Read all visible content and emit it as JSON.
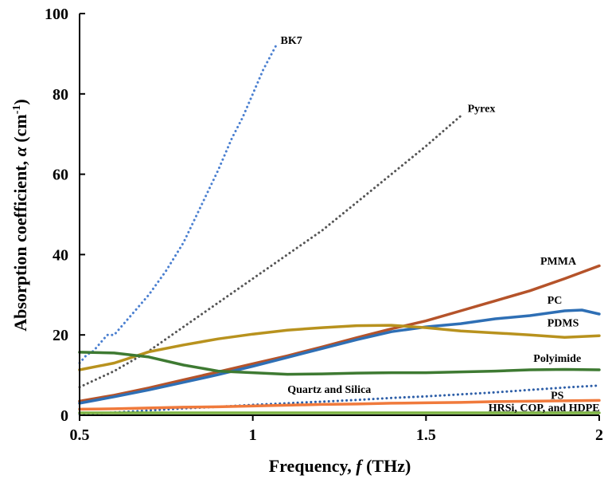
{
  "chart_data": {
    "type": "line",
    "xlabel": {
      "prefix": "Frequency, ",
      "symbol": "f",
      "suffix": " (THz)"
    },
    "ylabel": {
      "prefix": "Absorption coefficient, ",
      "symbol": "α",
      "suffix": " (cm",
      "sup": "-1",
      "close": ")"
    },
    "xlim": [
      0.5,
      2
    ],
    "ylim": [
      0,
      100
    ],
    "xticks": [
      "0.5",
      "1",
      "1.5",
      "2"
    ],
    "yticks": [
      "0",
      "20",
      "40",
      "60",
      "80",
      "100"
    ],
    "xtick_values": [
      0.5,
      1,
      1.5,
      2
    ],
    "ytick_values": [
      0,
      20,
      40,
      60,
      80,
      100
    ],
    "grid": false,
    "series": [
      {
        "name": "BK7",
        "color": "#4a7fd0",
        "style": "dotted",
        "label_at": [
          1.08,
          92.5
        ],
        "points": [
          [
            0.5,
            13
          ],
          [
            0.52,
            15
          ],
          [
            0.54,
            16
          ],
          [
            0.56,
            18
          ],
          [
            0.58,
            20
          ],
          [
            0.6,
            20
          ],
          [
            0.62,
            22
          ],
          [
            0.65,
            25
          ],
          [
            0.7,
            30
          ],
          [
            0.75,
            36
          ],
          [
            0.8,
            43
          ],
          [
            0.85,
            52
          ],
          [
            0.9,
            61
          ],
          [
            0.94,
            69
          ],
          [
            0.97,
            74
          ],
          [
            1.0,
            80
          ],
          [
            1.03,
            86
          ],
          [
            1.07,
            92.5
          ]
        ]
      },
      {
        "name": "Pyrex",
        "color": "#555555",
        "style": "dotted",
        "label_at": [
          1.62,
          75.5
        ],
        "points": [
          [
            0.5,
            7
          ],
          [
            0.6,
            11
          ],
          [
            0.7,
            16
          ],
          [
            0.8,
            22
          ],
          [
            0.9,
            28
          ],
          [
            1.0,
            34
          ],
          [
            1.1,
            40
          ],
          [
            1.2,
            46
          ],
          [
            1.3,
            53
          ],
          [
            1.4,
            60
          ],
          [
            1.5,
            67
          ],
          [
            1.6,
            74.5
          ]
        ]
      },
      {
        "name": "PMMA",
        "color": "#b5532a",
        "style": "solid",
        "label_at": [
          1.83,
          37.5
        ],
        "points": [
          [
            0.5,
            3.5
          ],
          [
            0.6,
            5
          ],
          [
            0.7,
            6.8
          ],
          [
            0.8,
            8.8
          ],
          [
            0.9,
            10.8
          ],
          [
            1.0,
            12.8
          ],
          [
            1.1,
            14.8
          ],
          [
            1.2,
            17
          ],
          [
            1.3,
            19.3
          ],
          [
            1.4,
            21.5
          ],
          [
            1.5,
            23.5
          ],
          [
            1.6,
            26
          ],
          [
            1.7,
            28.5
          ],
          [
            1.8,
            31
          ],
          [
            1.9,
            34
          ],
          [
            2.0,
            37.2
          ]
        ]
      },
      {
        "name": "PC",
        "color": "#2e6fb5",
        "style": "solid",
        "label_at": [
          1.85,
          27.8
        ],
        "points": [
          [
            0.5,
            3
          ],
          [
            0.6,
            4.6
          ],
          [
            0.7,
            6.3
          ],
          [
            0.8,
            8.2
          ],
          [
            0.9,
            10.1
          ],
          [
            1.0,
            12.2
          ],
          [
            1.1,
            14.4
          ],
          [
            1.2,
            16.6
          ],
          [
            1.3,
            18.8
          ],
          [
            1.4,
            20.8
          ],
          [
            1.5,
            22
          ],
          [
            1.6,
            22.8
          ],
          [
            1.7,
            24
          ],
          [
            1.8,
            24.8
          ],
          [
            1.9,
            26
          ],
          [
            1.95,
            26.2
          ],
          [
            2.0,
            25.2
          ]
        ]
      },
      {
        "name": "PDMS",
        "color": "#b8921e",
        "style": "solid",
        "label_at": [
          1.85,
          22.1
        ],
        "points": [
          [
            0.5,
            11.3
          ],
          [
            0.6,
            13
          ],
          [
            0.7,
            15.8
          ],
          [
            0.8,
            17.5
          ],
          [
            0.9,
            19
          ],
          [
            1.0,
            20.2
          ],
          [
            1.1,
            21.2
          ],
          [
            1.2,
            21.8
          ],
          [
            1.3,
            22.3
          ],
          [
            1.4,
            22.4
          ],
          [
            1.5,
            21.8
          ],
          [
            1.6,
            21
          ],
          [
            1.7,
            20.5
          ],
          [
            1.8,
            20
          ],
          [
            1.9,
            19.4
          ],
          [
            2.0,
            19.8
          ]
        ]
      },
      {
        "name": "Polyimide",
        "color": "#3e7a32",
        "style": "solid",
        "label_at": [
          1.81,
          13.3
        ],
        "points": [
          [
            0.5,
            15.7
          ],
          [
            0.6,
            15.5
          ],
          [
            0.7,
            14.5
          ],
          [
            0.8,
            12.5
          ],
          [
            0.9,
            11
          ],
          [
            1.0,
            10.6
          ],
          [
            1.1,
            10.2
          ],
          [
            1.2,
            10.3
          ],
          [
            1.3,
            10.5
          ],
          [
            1.4,
            10.6
          ],
          [
            1.5,
            10.6
          ],
          [
            1.6,
            10.8
          ],
          [
            1.7,
            11
          ],
          [
            1.8,
            11.3
          ],
          [
            1.9,
            11.4
          ],
          [
            2.0,
            11.3
          ]
        ]
      },
      {
        "name": "Quartz and Silica",
        "color": "#2e5fa8",
        "style": "dotted",
        "label_at": [
          1.1,
          5.6
        ],
        "points": [
          [
            0.5,
            0.3
          ],
          [
            0.6,
            0.7
          ],
          [
            0.7,
            1.2
          ],
          [
            0.8,
            1.7
          ],
          [
            0.9,
            2.1
          ],
          [
            1.0,
            2.6
          ],
          [
            1.1,
            3
          ],
          [
            1.2,
            3.4
          ],
          [
            1.3,
            3.8
          ],
          [
            1.4,
            4.3
          ],
          [
            1.5,
            4.7
          ],
          [
            1.6,
            5.2
          ],
          [
            1.7,
            5.7
          ],
          [
            1.8,
            6.3
          ],
          [
            1.9,
            6.9
          ],
          [
            2.0,
            7.4
          ]
        ]
      },
      {
        "name": "PS",
        "color": "#f07a3c",
        "style": "solid",
        "label_at": [
          1.86,
          4.1
        ],
        "points": [
          [
            0.5,
            1.5
          ],
          [
            0.6,
            1.6
          ],
          [
            0.7,
            1.8
          ],
          [
            0.8,
            2
          ],
          [
            0.9,
            2.1
          ],
          [
            1.0,
            2.3
          ],
          [
            1.1,
            2.5
          ],
          [
            1.2,
            2.7
          ],
          [
            1.3,
            2.8
          ],
          [
            1.4,
            3
          ],
          [
            1.5,
            3.1
          ],
          [
            1.6,
            3.2
          ],
          [
            1.7,
            3.4
          ],
          [
            1.8,
            3.5
          ],
          [
            1.9,
            3.6
          ],
          [
            2.0,
            3.7
          ]
        ]
      },
      {
        "name": "HRSi, COP, and HDPE",
        "color": "#7cb342",
        "style": "solid",
        "label_at": [
          1.68,
          1.0
        ],
        "points": [
          [
            0.5,
            0.6
          ],
          [
            0.75,
            0.6
          ],
          [
            1.0,
            0.6
          ],
          [
            1.25,
            0.6
          ],
          [
            1.5,
            0.6
          ],
          [
            1.75,
            0.6
          ],
          [
            2.0,
            0.6
          ]
        ]
      }
    ]
  }
}
